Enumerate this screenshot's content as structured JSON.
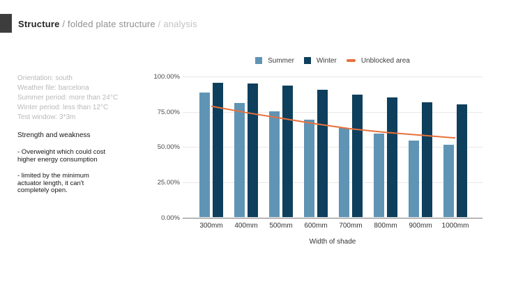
{
  "header": {
    "title_primary": "Structure",
    "separator1": " / ",
    "title_secondary": "folded plate structure",
    "separator2": " / ",
    "title_tertiary": "analysis"
  },
  "left_panel": {
    "info_lines": [
      "Orientation: south",
      "Weather file: barcelona",
      "Summer period: more than 24°C",
      "Winter period: less than 12°C",
      "Test window: 3*3m"
    ],
    "strength_heading": "Strength and weakness",
    "bullets": [
      "- Overweight which could cost\nhigher energy consumption",
      "- limited by the minimum\nactuator length, it can't\ncompletely open."
    ]
  },
  "chart_data": {
    "type": "bar",
    "categories": [
      "300mm",
      "400mm",
      "500mm",
      "600mm",
      "700mm",
      "800mm",
      "900mm",
      "1000mm"
    ],
    "series": [
      {
        "name": "Summer",
        "type": "bar",
        "color": "#6094b4",
        "values": [
          88.5,
          81.5,
          75.5,
          69.5,
          63.5,
          59.5,
          54.5,
          51.5
        ]
      },
      {
        "name": "Winter",
        "type": "bar",
        "color": "#0e3f5c",
        "values": [
          95.5,
          95,
          93.5,
          90.5,
          87,
          85,
          82,
          80.5
        ]
      },
      {
        "name": "Unblocked area",
        "type": "line",
        "color": "#e8703a",
        "values": [
          79,
          74.5,
          70.5,
          66.5,
          63,
          60.5,
          58.5,
          56.5
        ]
      }
    ],
    "xlabel": "Width of shade",
    "ylabel": "",
    "ylim": [
      0,
      100
    ],
    "y_tick_labels": [
      "0.00%",
      "25.00%",
      "50.00%",
      "75.00%",
      "100.00%"
    ],
    "legend_position": "top",
    "grid": true
  }
}
